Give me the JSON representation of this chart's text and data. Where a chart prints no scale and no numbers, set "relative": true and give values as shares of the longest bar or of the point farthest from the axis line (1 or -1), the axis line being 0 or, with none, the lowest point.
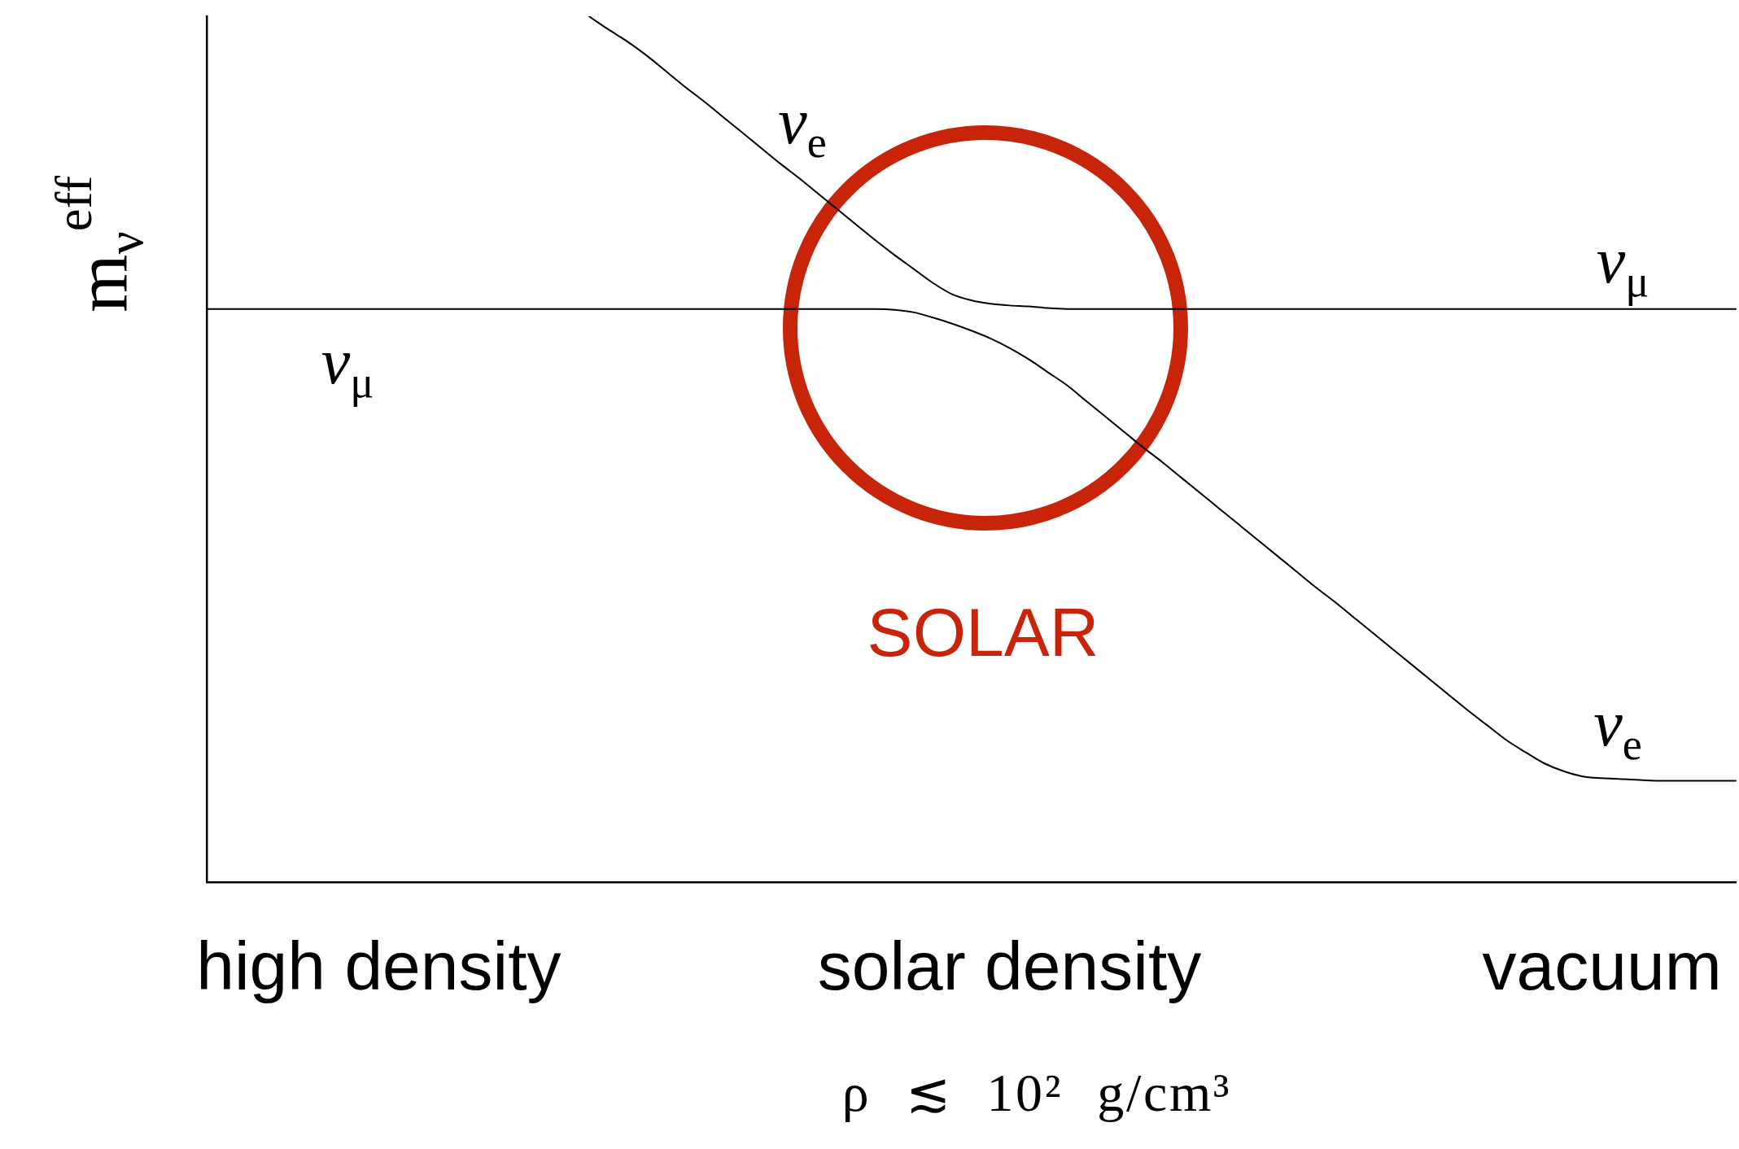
{
  "chart_data": {
    "type": "line",
    "relative": true,
    "xlabel": "ρ ≲ 10² g/cm³",
    "ylabel": "m$_{ν}$$^{eff}$",
    "categories": [
      null,
      null,
      null,
      null,
      null,
      null,
      null,
      null,
      null,
      "high density",
      null,
      null,
      null,
      null,
      null,
      null,
      null,
      null,
      null,
      null,
      null,
      null,
      null,
      null,
      null,
      null,
      null,
      null,
      null,
      null,
      null,
      null,
      null,
      null,
      null,
      null,
      null,
      null,
      null,
      null,
      null,
      null,
      "solar density",
      null,
      null,
      null,
      null,
      null,
      null,
      null,
      null,
      null,
      null,
      null,
      null,
      null,
      null,
      null,
      null,
      null,
      null,
      null,
      null,
      null,
      null,
      null,
      null,
      null,
      null,
      null,
      null,
      null,
      null,
      "vacuum",
      null,
      null,
      null,
      null,
      null,
      null,
      null
    ],
    "series": [
      {
        "color": "#000000",
        "values": [
          0.662,
          0.662,
          0.662,
          0.662,
          0.662,
          0.662,
          0.662,
          0.662,
          0.662,
          0.662,
          0.662,
          0.662,
          0.662,
          0.662,
          0.662,
          0.662,
          0.662,
          0.662,
          0.662,
          0.662,
          0.662,
          0.662,
          0.662,
          0.662,
          0.662,
          0.662,
          0.662,
          0.662,
          0.662,
          0.662,
          0.662,
          0.662,
          0.662,
          0.662,
          0.662,
          0.662,
          0.661,
          0.658,
          0.652,
          0.645,
          0.637,
          0.628,
          0.617,
          0.604,
          0.589,
          0.574,
          0.556,
          0.538,
          0.52,
          0.502,
          0.485,
          0.467,
          0.449,
          0.431,
          0.413,
          0.395,
          0.377,
          0.359,
          0.341,
          0.324,
          0.306,
          0.288,
          0.27,
          0.252,
          0.234,
          0.216,
          0.198,
          0.181,
          0.164,
          0.15,
          0.137,
          0.128,
          0.122,
          0.12,
          0.119,
          0.118,
          0.117,
          0.117,
          0.117,
          0.117,
          0.117
        ]
      },
      {
        "color": "#000000",
        "values": [
          null,
          null,
          null,
          null,
          null,
          null,
          null,
          null,
          null,
          null,
          null,
          null,
          null,
          null,
          null,
          null,
          null,
          null,
          null,
          null,
          1.0,
          0.985,
          0.971,
          0.955,
          0.937,
          0.919,
          0.902,
          0.884,
          0.866,
          0.848,
          0.83,
          0.813,
          0.795,
          0.777,
          0.759,
          0.741,
          0.724,
          0.708,
          0.692,
          0.679,
          0.672,
          0.668,
          0.666,
          0.665,
          0.663,
          0.662,
          0.662,
          0.662,
          0.662,
          0.662,
          0.662,
          0.662,
          0.662,
          0.662,
          0.662,
          0.662,
          0.662,
          0.662,
          0.662,
          0.662,
          0.662,
          0.662,
          0.662,
          0.662,
          0.662,
          0.662,
          0.662,
          0.662,
          0.662,
          0.662,
          0.662,
          0.662,
          0.662,
          0.662,
          0.662,
          0.662,
          0.662,
          0.662,
          0.662,
          0.662,
          0.662
        ]
      }
    ],
    "annotations": [
      "ν$_{e}$",
      "ν$_{μ}$",
      "ν$_{μ}$",
      "ν$_{e}$",
      "SOLAR"
    ]
  }
}
